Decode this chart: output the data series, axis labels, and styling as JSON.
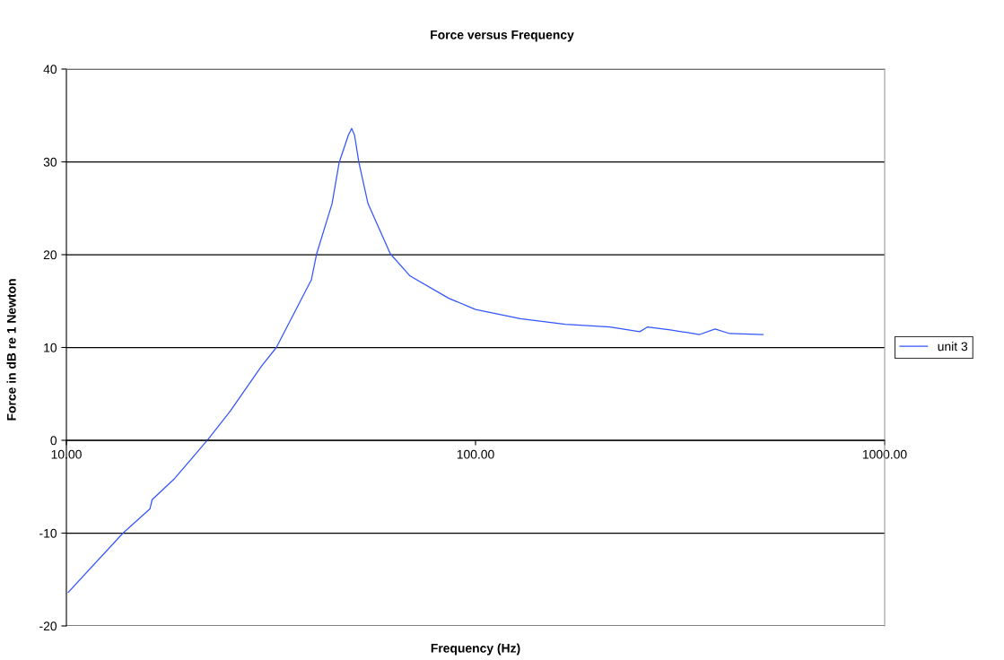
{
  "chart_data": {
    "type": "line",
    "title": "Force versus Frequency",
    "xlabel": "Frequency (Hz)",
    "ylabel": "Force in dB re 1 Newton",
    "log": "x",
    "xlim": [
      10,
      1000
    ],
    "xticks": [
      {
        "value": 10,
        "label": "10.00"
      },
      {
        "value": 100,
        "label": "100.00"
      },
      {
        "value": 1000,
        "label": "1000.00"
      }
    ],
    "ylim": [
      -20,
      40
    ],
    "yticks": [
      -20,
      -10,
      0,
      10,
      20,
      30,
      40
    ],
    "grid": "y",
    "legend": "right",
    "series": [
      {
        "name": "unit 3",
        "color": "#3355ff",
        "x": [
          10.1,
          13.75,
          16.0,
          16.2,
          18.4,
          22.2,
          25.2,
          30.0,
          32.6,
          39.7,
          40.9,
          44.6,
          46.4,
          48.9,
          49.8,
          50.6,
          51.9,
          54.6,
          61.9,
          69.2,
          86.0,
          100,
          128.7,
          165.6,
          213,
          252,
          263,
          299,
          353,
          385,
          418,
          504
        ],
        "values": [
          -16.4,
          -10.0,
          -7.4,
          -6.4,
          -4.1,
          0.1,
          3.2,
          8.0,
          10.0,
          17.3,
          20.1,
          25.5,
          29.9,
          32.9,
          33.6,
          32.9,
          29.9,
          25.5,
          20.1,
          17.7,
          15.3,
          14.1,
          13.1,
          12.5,
          12.2,
          11.7,
          12.2,
          11.9,
          11.4,
          12.0,
          11.5,
          11.4
        ]
      }
    ]
  }
}
